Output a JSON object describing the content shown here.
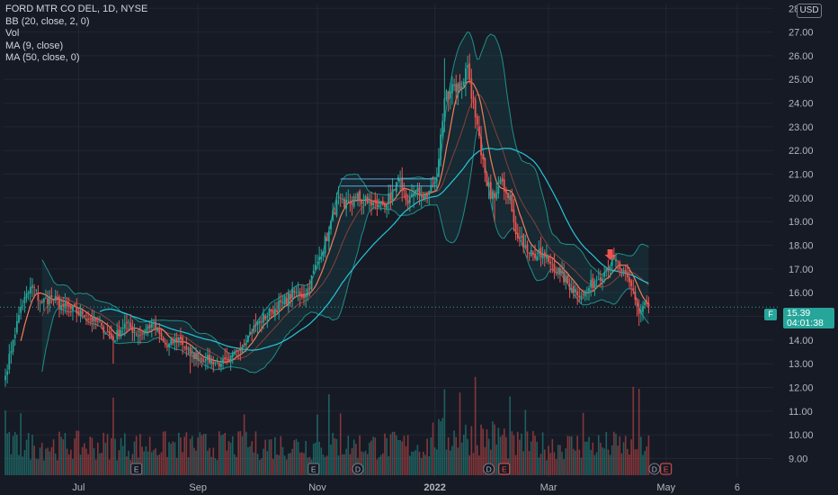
{
  "legend": {
    "title": "FORD MTR CO DEL, 1D, NYSE",
    "bb": "BB (20, close, 2, 0)",
    "vol": "Vol",
    "ma9": "MA (9, close)",
    "ma50": "MA (50, close, 0)"
  },
  "currency": "USD",
  "symbol": "F",
  "last_price": "15.39",
  "countdown": "04:01:38",
  "colors": {
    "up": "#26a69a",
    "down": "#ef5350",
    "ma9": "#f57c5b",
    "ma50": "#26c6da",
    "bb_band": "#1e8f8a",
    "background": "#161a25"
  },
  "chart_data": {
    "type": "candlestick",
    "y_axis": {
      "ylim": [
        8.6,
        28.2
      ],
      "ticks": [
        "9.00",
        "10.00",
        "11.00",
        "12.00",
        "13.00",
        "14.00",
        "15.00",
        "16.00",
        "17.00",
        "18.00",
        "19.00",
        "20.00",
        "21.00",
        "22.00",
        "23.00",
        "24.00",
        "25.00",
        "26.00",
        "27.00",
        "28.00"
      ],
      "grid": true,
      "side": "right"
    },
    "x_axis": {
      "ticks": [
        {
          "label": "Jul",
          "day": 38
        },
        {
          "label": "Sep",
          "day": 100
        },
        {
          "label": "Nov",
          "day": 162
        },
        {
          "label": "2022",
          "day": 223
        },
        {
          "label": "Mar",
          "day": 282
        },
        {
          "label": "May",
          "day": 343
        },
        {
          "label": "6",
          "day": 380
        }
      ]
    },
    "events": [
      {
        "label": "E",
        "day": 68
      },
      {
        "label": "E",
        "day": 160
      },
      {
        "label": "D",
        "day": 183
      },
      {
        "label": "D",
        "day": 251
      },
      {
        "label": "E",
        "day": 259
      },
      {
        "label": "D",
        "day": 337
      },
      {
        "label": "E",
        "day": 343
      }
    ],
    "close_anchors": [
      [
        0,
        12.5
      ],
      [
        4,
        14.0
      ],
      [
        8,
        15.4
      ],
      [
        14,
        16.3
      ],
      [
        18,
        15.6
      ],
      [
        24,
        15.8
      ],
      [
        30,
        15.4
      ],
      [
        40,
        15.1
      ],
      [
        50,
        14.6
      ],
      [
        56,
        14.0
      ],
      [
        62,
        14.7
      ],
      [
        70,
        14.2
      ],
      [
        76,
        14.7
      ],
      [
        84,
        13.7
      ],
      [
        90,
        14.1
      ],
      [
        96,
        13.4
      ],
      [
        104,
        13.2
      ],
      [
        112,
        13.0
      ],
      [
        116,
        13.1
      ],
      [
        120,
        13.5
      ],
      [
        126,
        14.2
      ],
      [
        132,
        14.8
      ],
      [
        138,
        15.2
      ],
      [
        144,
        15.6
      ],
      [
        150,
        16.0
      ],
      [
        156,
        15.9
      ],
      [
        162,
        17.3
      ],
      [
        168,
        18.6
      ],
      [
        172,
        19.9
      ],
      [
        176,
        19.6
      ],
      [
        182,
        20.0
      ],
      [
        188,
        19.8
      ],
      [
        194,
        19.7
      ],
      [
        200,
        19.9
      ],
      [
        205,
        20.8
      ],
      [
        208,
        19.9
      ],
      [
        212,
        20.2
      ],
      [
        216,
        20.1
      ],
      [
        220,
        20.3
      ],
      [
        224,
        20.8
      ],
      [
        228,
        24.2
      ],
      [
        232,
        24.8
      ],
      [
        236,
        24.6
      ],
      [
        240,
        25.6
      ],
      [
        244,
        23.4
      ],
      [
        247,
        21.8
      ],
      [
        250,
        20.5
      ],
      [
        254,
        20.0
      ],
      [
        258,
        20.7
      ],
      [
        262,
        20.1
      ],
      [
        266,
        18.3
      ],
      [
        270,
        18.0
      ],
      [
        274,
        17.6
      ],
      [
        280,
        17.5
      ],
      [
        284,
        17.2
      ],
      [
        288,
        16.8
      ],
      [
        294,
        16.2
      ],
      [
        300,
        15.9
      ],
      [
        306,
        16.5
      ],
      [
        312,
        17.0
      ],
      [
        316,
        17.4
      ],
      [
        320,
        16.9
      ],
      [
        326,
        16.1
      ],
      [
        329,
        15.1
      ],
      [
        332,
        15.6
      ],
      [
        334,
        15.39
      ]
    ],
    "last_close": 15.39,
    "bollinger": {
      "period": 20,
      "mult": 2
    },
    "moving_averages": [
      {
        "name": "MA (9, close)",
        "period": 9
      },
      {
        "name": "MA (50, close, 0)",
        "period": 50
      }
    ],
    "price_line": 15.39
  }
}
